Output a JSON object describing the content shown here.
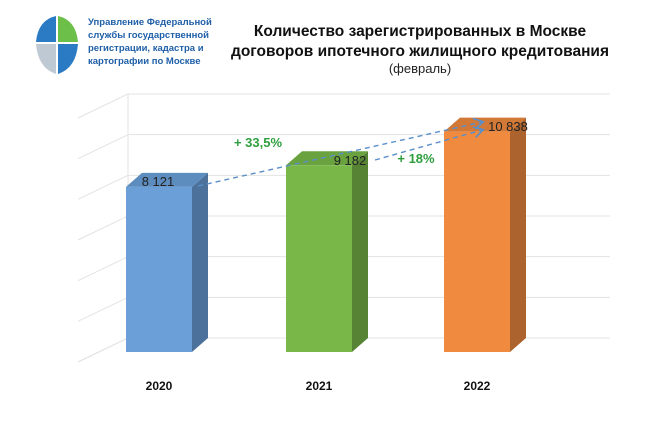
{
  "org": {
    "lines": [
      "Управление Федеральной",
      "службы государственной",
      "регистрации, кадастра и",
      "картографии по Москве"
    ]
  },
  "chart_data": {
    "type": "bar",
    "title_lines": [
      "Количество зарегистрированных  в Москве",
      "договоров ипотечного жилищного кредитования"
    ],
    "subtitle": "(февраль)",
    "categories": [
      "2020",
      "2021",
      "2022"
    ],
    "values": [
      8121,
      9182,
      10838
    ],
    "value_labels": [
      "8 121",
      "9 182",
      "10 838"
    ],
    "bar_colors": [
      "#6a9fd8",
      "#79b848",
      "#ef8a3e"
    ],
    "annotations": [
      {
        "text": "+ 33,5%",
        "color": "#2e9e3e"
      },
      {
        "text": "+ 18%",
        "color": "#2e9e3e"
      }
    ],
    "xlabel": "",
    "ylabel": "",
    "ylim": [
      0,
      12000
    ],
    "grid": true
  }
}
